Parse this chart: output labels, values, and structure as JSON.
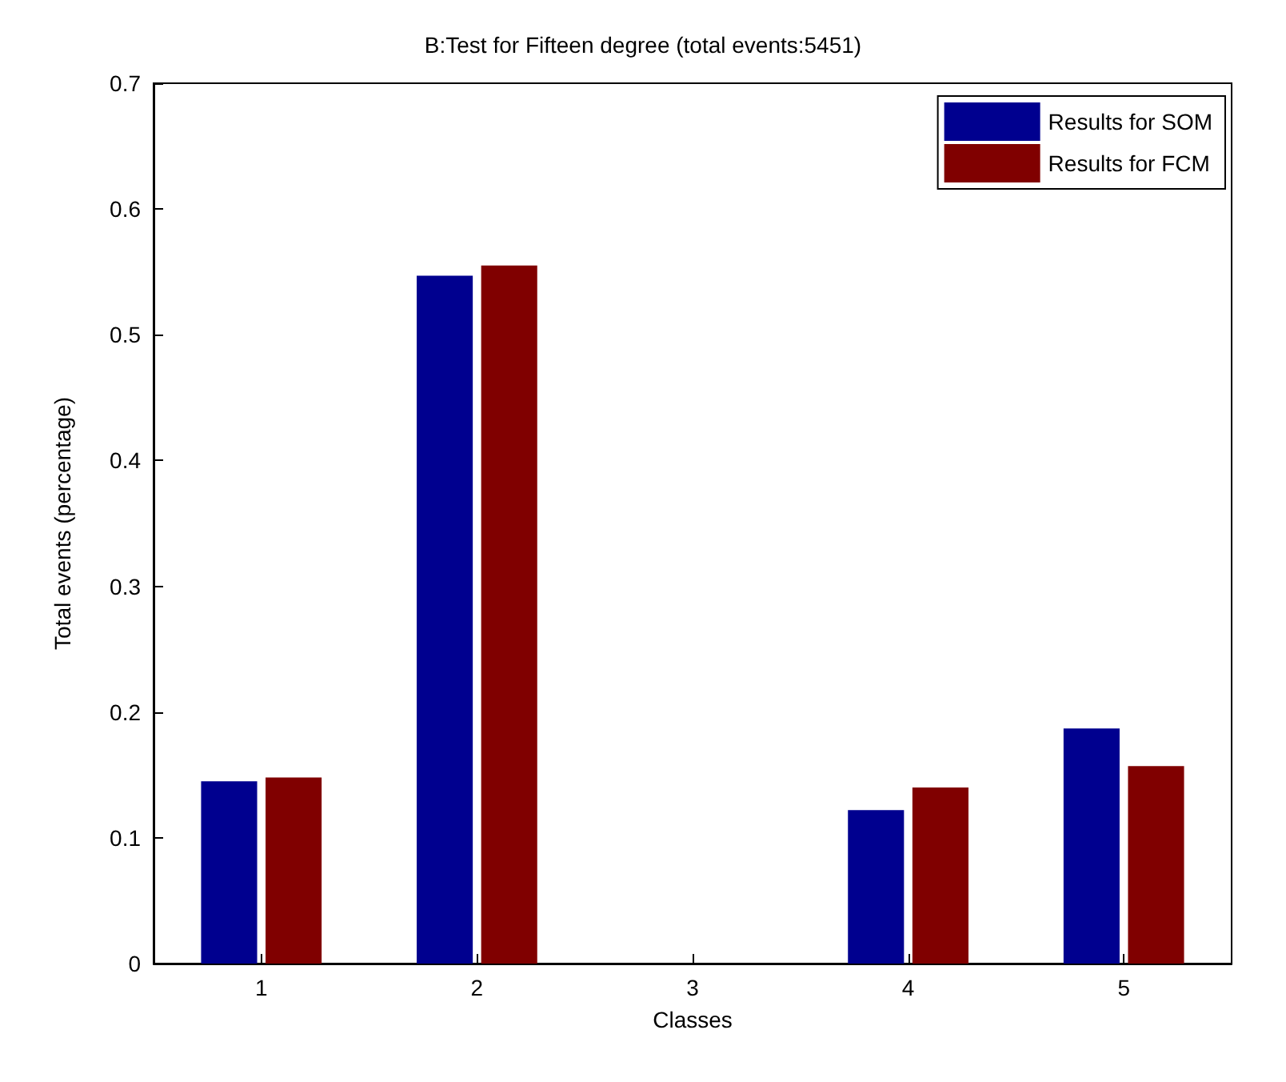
{
  "chart_data": {
    "type": "bar",
    "title": "B:Test for Fifteen degree (total events:5451)",
    "xlabel": "Classes",
    "ylabel": "Total events (percentage)",
    "categories": [
      "1",
      "2",
      "3",
      "4",
      "5"
    ],
    "series": [
      {
        "name": "Results for SOM",
        "color": "#00008f",
        "values": [
          0.145,
          0.547,
          0,
          0.122,
          0.187
        ]
      },
      {
        "name": "Results for FCM",
        "color": "#800000",
        "values": [
          0.148,
          0.555,
          0,
          0.14,
          0.157
        ]
      }
    ],
    "ylim": [
      0,
      0.7
    ],
    "yticks": [
      0,
      0.1,
      0.2,
      0.3,
      0.4,
      0.5,
      0.6,
      0.7
    ],
    "grid": false,
    "legend": "top right"
  }
}
